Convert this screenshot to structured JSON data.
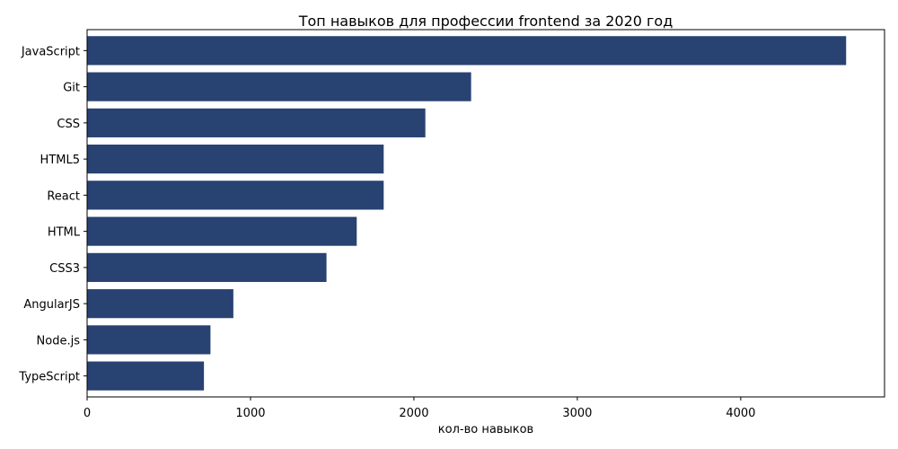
{
  "chart_data": {
    "type": "bar",
    "orientation": "horizontal",
    "title": "Топ навыков для профессии frontend за 2020 год",
    "xlabel": "кол-во навыков",
    "ylabel": "",
    "categories": [
      "TypeScript",
      "Node.js",
      "AngularJS",
      "CSS3",
      "HTML",
      "React",
      "HTML5",
      "CSS",
      "Git",
      "JavaScript"
    ],
    "values": [
      715,
      755,
      895,
      1465,
      1650,
      1815,
      1815,
      2070,
      2350,
      4645
    ],
    "xlim": [
      0,
      4880
    ],
    "xticks": [
      0,
      1000,
      2000,
      3000,
      4000
    ],
    "grid": false,
    "bar_color": "#284272"
  }
}
